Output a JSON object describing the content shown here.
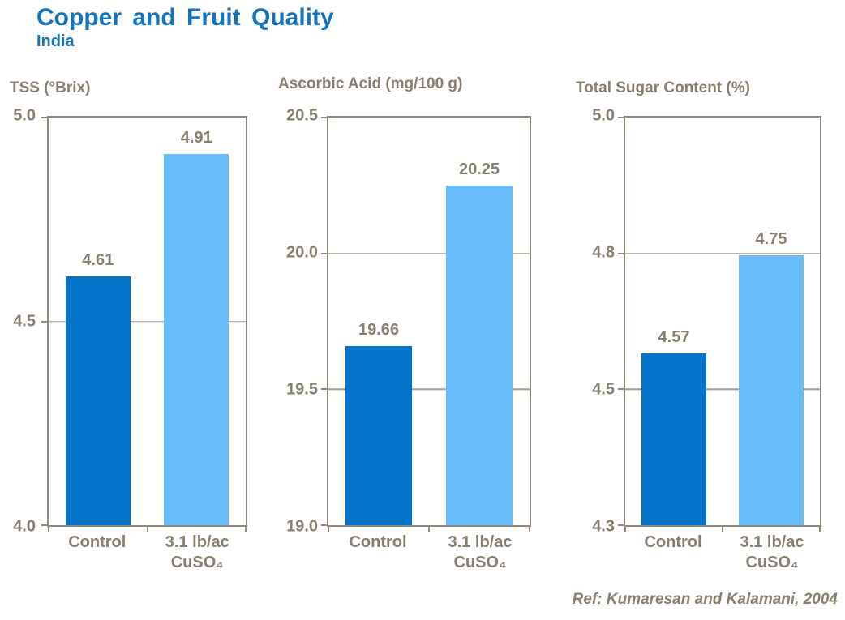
{
  "header": {
    "title": "Copper and Fruit Quality",
    "subtitle": "India"
  },
  "footer": {
    "reference": "Ref: Kumaresan and Kalamani, 2004"
  },
  "colors": {
    "title_blue": "#1473BB",
    "bar_dark_blue": "#0374C9",
    "bar_light_blue": "#68BCFA",
    "axis_text_brown": "#8A7F6F",
    "axis_line_brown": "#91887A",
    "gridline_brown": "#A89D8D",
    "background": "#FFFFFF"
  },
  "chart_data": [
    {
      "type": "bar",
      "title": "TSS (°Brix)",
      "categories": [
        "Control",
        "3.1 lb/ac\nCuSO₄"
      ],
      "values": [
        4.61,
        4.91
      ],
      "data_labels": [
        "4.61",
        "4.91"
      ],
      "bar_colors": [
        "#0374C9",
        "#68BCFA"
      ],
      "y_ticks": [
        "5.0",
        "4.5",
        "4.0"
      ],
      "ylim": [
        4.0,
        5.0
      ],
      "xlabel": "",
      "ylabel": "TSS (°Brix)",
      "legend": "none",
      "grid": "horizontal interior gridlines",
      "bar_height_pct": [
        61.0,
        91.0
      ]
    },
    {
      "type": "bar",
      "title": "Ascorbic Acid (mg/100 g)",
      "categories": [
        "Control",
        "3.1 lb/ac\nCuSO₄"
      ],
      "values": [
        19.66,
        20.25
      ],
      "data_labels": [
        "19.66",
        "20.25"
      ],
      "bar_colors": [
        "#0374C9",
        "#68BCFA"
      ],
      "y_ticks": [
        "20.5",
        "20.0",
        "19.5",
        "19.0"
      ],
      "ylim": [
        19.0,
        20.5
      ],
      "xlabel": "",
      "ylabel": "Ascorbic Acid (mg/100 g)",
      "legend": "none",
      "grid": "horizontal interior gridlines",
      "bar_height_pct": [
        44.0,
        83.3
      ]
    },
    {
      "type": "bar",
      "title": "Total Sugar Content (%)",
      "categories": [
        "Control",
        "3.1 lb/ac\nCuSO₄"
      ],
      "values": [
        4.57,
        4.75
      ],
      "data_labels": [
        "4.57",
        "4.75"
      ],
      "bar_colors": [
        "#0374C9",
        "#68BCFA"
      ],
      "y_ticks": [
        "5.0",
        "4.8",
        "4.5",
        "4.3"
      ],
      "ylim": [
        4.3,
        5.0
      ],
      "xlabel": "",
      "ylabel": "Total Sugar Content (%)",
      "legend": "none",
      "grid": "horizontal interior gridlines",
      "bar_height_pct": [
        42.2,
        66.3
      ]
    }
  ]
}
